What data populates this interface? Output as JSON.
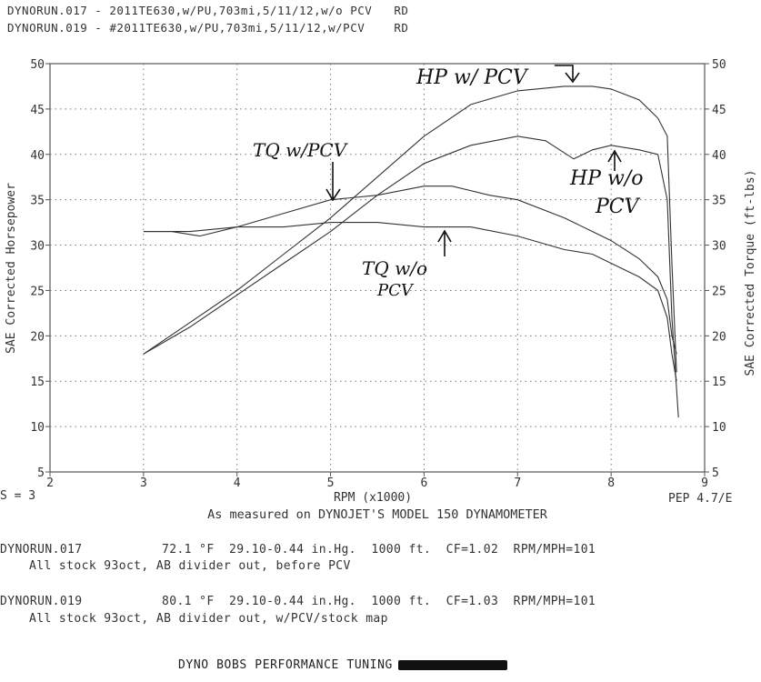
{
  "header": {
    "line1": "DYNORUN.017 - 2011TE630,w/PU,703mi,5/11/12,w/o PCV   RD",
    "line2": "DYNORUN.019 - #2011TE630,w/PU,703mi,5/11/12,w/PCV    RD"
  },
  "chart_data": {
    "type": "line",
    "xlabel": "RPM (x1000)",
    "ylabel_left": "SAE Corrected Horsepower",
    "ylabel_right": "SAE Corrected Torque (ft-lbs)",
    "subtitle": "As measured on DYNOJET'S MODEL 150 DYNAMOMETER",
    "xlim": [
      2,
      9
    ],
    "ylim": [
      5,
      50
    ],
    "x_ticks": [
      "2",
      "3",
      "4",
      "5",
      "6",
      "7",
      "8",
      "9"
    ],
    "y_ticks": [
      "5",
      "10",
      "15",
      "20",
      "25",
      "30",
      "35",
      "40",
      "45",
      "50"
    ],
    "corner_left": "S = 3",
    "corner_right": "PEP 4.7/E",
    "series": [
      {
        "name": "HP w/ PCV",
        "x": [
          3.0,
          3.5,
          4.0,
          4.5,
          5.0,
          5.5,
          6.0,
          6.5,
          7.0,
          7.5,
          7.8,
          8.0,
          8.3,
          8.5,
          8.6,
          8.65,
          8.7
        ],
        "y": [
          18,
          21.5,
          25,
          29,
          33,
          37.5,
          42,
          45.5,
          47,
          47.5,
          47.5,
          47.2,
          46,
          44,
          42,
          28,
          16
        ]
      },
      {
        "name": "HP w/o PCV",
        "x": [
          3.0,
          3.5,
          4.0,
          4.5,
          5.0,
          5.5,
          6.0,
          6.5,
          7.0,
          7.3,
          7.6,
          7.8,
          8.0,
          8.3,
          8.5,
          8.6,
          8.65,
          8.72
        ],
        "y": [
          18,
          21,
          24.5,
          28,
          31.5,
          35.5,
          39,
          41,
          42,
          41.5,
          39.5,
          40.5,
          41,
          40.5,
          40,
          35,
          22,
          11
        ]
      },
      {
        "name": "TQ w/ PCV",
        "x": [
          3.0,
          3.3,
          3.6,
          4.0,
          4.5,
          5.0,
          5.5,
          6.0,
          6.3,
          6.7,
          7.0,
          7.5,
          8.0,
          8.3,
          8.5,
          8.6,
          8.65,
          8.7
        ],
        "y": [
          31.5,
          31.5,
          31,
          32,
          33.5,
          35,
          35.5,
          36.5,
          36.5,
          35.5,
          35,
          33,
          30.5,
          28.5,
          26.5,
          24,
          20,
          18
        ]
      },
      {
        "name": "TQ w/o PCV",
        "x": [
          3.0,
          3.5,
          4.0,
          4.5,
          5.0,
          5.5,
          6.0,
          6.5,
          7.0,
          7.5,
          7.8,
          8.0,
          8.3,
          8.5,
          8.6,
          8.65,
          8.7
        ],
        "y": [
          31.5,
          31.5,
          32,
          32,
          32.5,
          32.5,
          32,
          32,
          31,
          29.5,
          29,
          28,
          26.5,
          25,
          22,
          18,
          15
        ]
      }
    ],
    "annotations": [
      "HP w/ PCV",
      "TQ w/PCV",
      "HP w/o",
      "PCV",
      "TQ w/o",
      "PCV"
    ]
  },
  "runs": [
    {
      "id": "DYNORUN.017",
      "conditions": "72.1 °F  29.10-0.44 in.Hg.  1000 ft.  CF=1.02  RPM/MPH=101",
      "notes": "All stock 93oct, AB divider out, before PCV"
    },
    {
      "id": "DYNORUN.019",
      "conditions": "80.1 °F  29.10-0.44 in.Hg.  1000 ft.  CF=1.03  RPM/MPH=101",
      "notes": "All stock 93oct, AB divider out, w/PCV/stock map"
    }
  ],
  "footer": {
    "text": "DYNO BOBS PERFORMANCE TUNING"
  }
}
